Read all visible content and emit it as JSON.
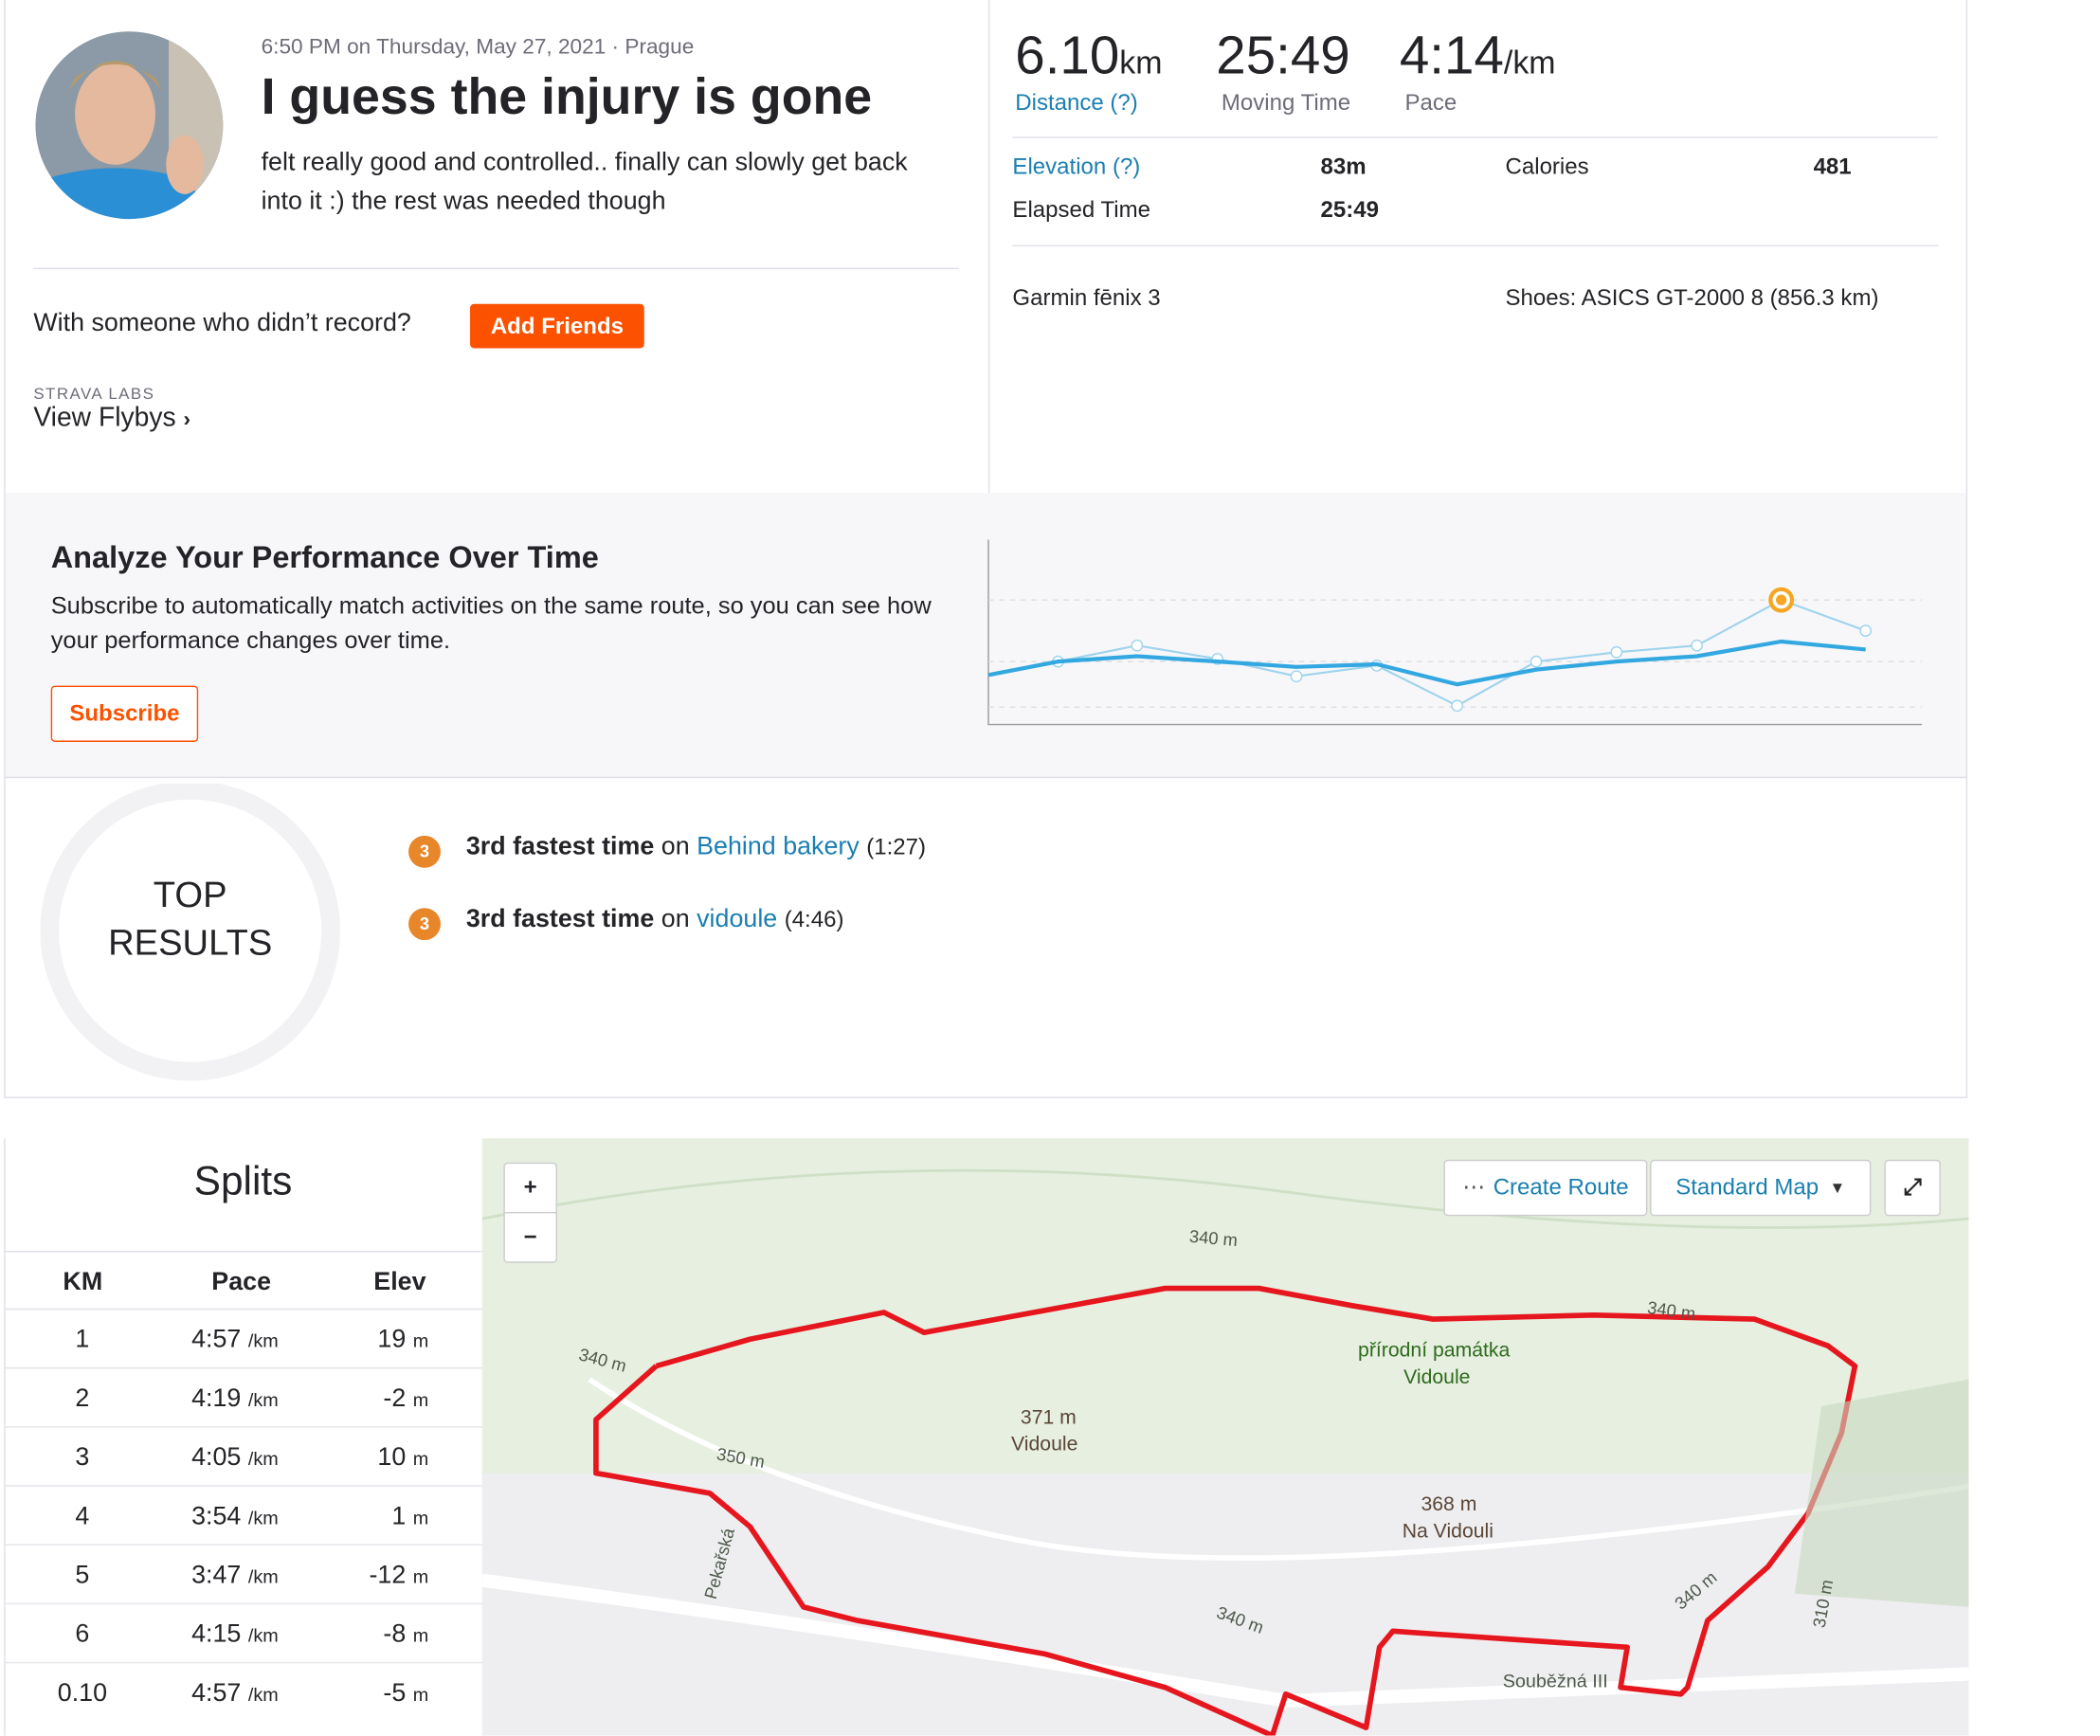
{
  "activity": {
    "datetime": "6:50 PM on Thursday, May 27, 2021 · Prague",
    "title": "I guess the injury is gone",
    "description": "felt really good and controlled.. finally can slowly get back into it :) the rest was needed though"
  },
  "friends": {
    "prompt": "With someone who didn’t record?",
    "button": "Add Friends"
  },
  "labs": {
    "label": "STRAVA LABS",
    "link": "View Flybys"
  },
  "stats": {
    "primary": [
      {
        "value": "6.10",
        "unit": "km",
        "label": "Distance (?)"
      },
      {
        "value": "25:49",
        "label": "Moving Time"
      },
      {
        "value": "4:14",
        "unit": "/km",
        "label": "Pace"
      }
    ],
    "secondary": [
      {
        "label": "Elevation (?)",
        "value": "83m"
      },
      {
        "label": "Calories",
        "value": "481"
      },
      {
        "label": "Elapsed Time",
        "value": "25:49"
      }
    ],
    "device": "Garmin fēnix 3",
    "shoes": "Shoes: ASICS GT-2000 8 (856.3 km)"
  },
  "analyze": {
    "title": "Analyze Your Performance Over Time",
    "text": "Subscribe to automatically match activities on the same route, so you can see how your performance changes over time.",
    "button": "Subscribe"
  },
  "top_results": {
    "title_lines": [
      "TOP",
      "RESULTS"
    ],
    "items": [
      {
        "medal": "3",
        "rank": "3rd fastest time",
        "on": "on",
        "segment": "Behind bakery",
        "time": "(1:27)"
      },
      {
        "medal": "3",
        "rank": "3rd fastest time",
        "on": "on",
        "segment": "vidoule",
        "time": "(4:46)"
      }
    ]
  },
  "splits": {
    "title": "Splits",
    "columns": [
      "KM",
      "Pace",
      "Elev"
    ],
    "rows": [
      {
        "km": "1",
        "pace": "4:57",
        "pace_unit": "/km",
        "elev": "19",
        "elev_unit": "m"
      },
      {
        "km": "2",
        "pace": "4:19",
        "pace_unit": "/km",
        "elev": "-2",
        "elev_unit": "m"
      },
      {
        "km": "3",
        "pace": "4:05",
        "pace_unit": "/km",
        "elev": "10",
        "elev_unit": "m"
      },
      {
        "km": "4",
        "pace": "3:54",
        "pace_unit": "/km",
        "elev": "1",
        "elev_unit": "m"
      },
      {
        "km": "5",
        "pace": "3:47",
        "pace_unit": "/km",
        "elev": "-12",
        "elev_unit": "m"
      },
      {
        "km": "6",
        "pace": "4:15",
        "pace_unit": "/km",
        "elev": "-8",
        "elev_unit": "m"
      },
      {
        "km": "0.10",
        "pace": "4:57",
        "pace_unit": "/km",
        "elev": "-5",
        "elev_unit": "m"
      }
    ]
  },
  "map": {
    "controls": {
      "zoom_in": "+",
      "zoom_out": "−",
      "create_route": "Create Route",
      "map_type": "Standard Map"
    },
    "labels": [
      "340 m",
      "340 m",
      "340 m",
      "350 m",
      "371 m",
      "Vidoule",
      "přírodní památka",
      "Vidoule",
      "368 m",
      "Na Vidouli",
      "Pekařská",
      "340 m",
      "340 m",
      "310 m",
      "Souběžná III"
    ]
  }
}
